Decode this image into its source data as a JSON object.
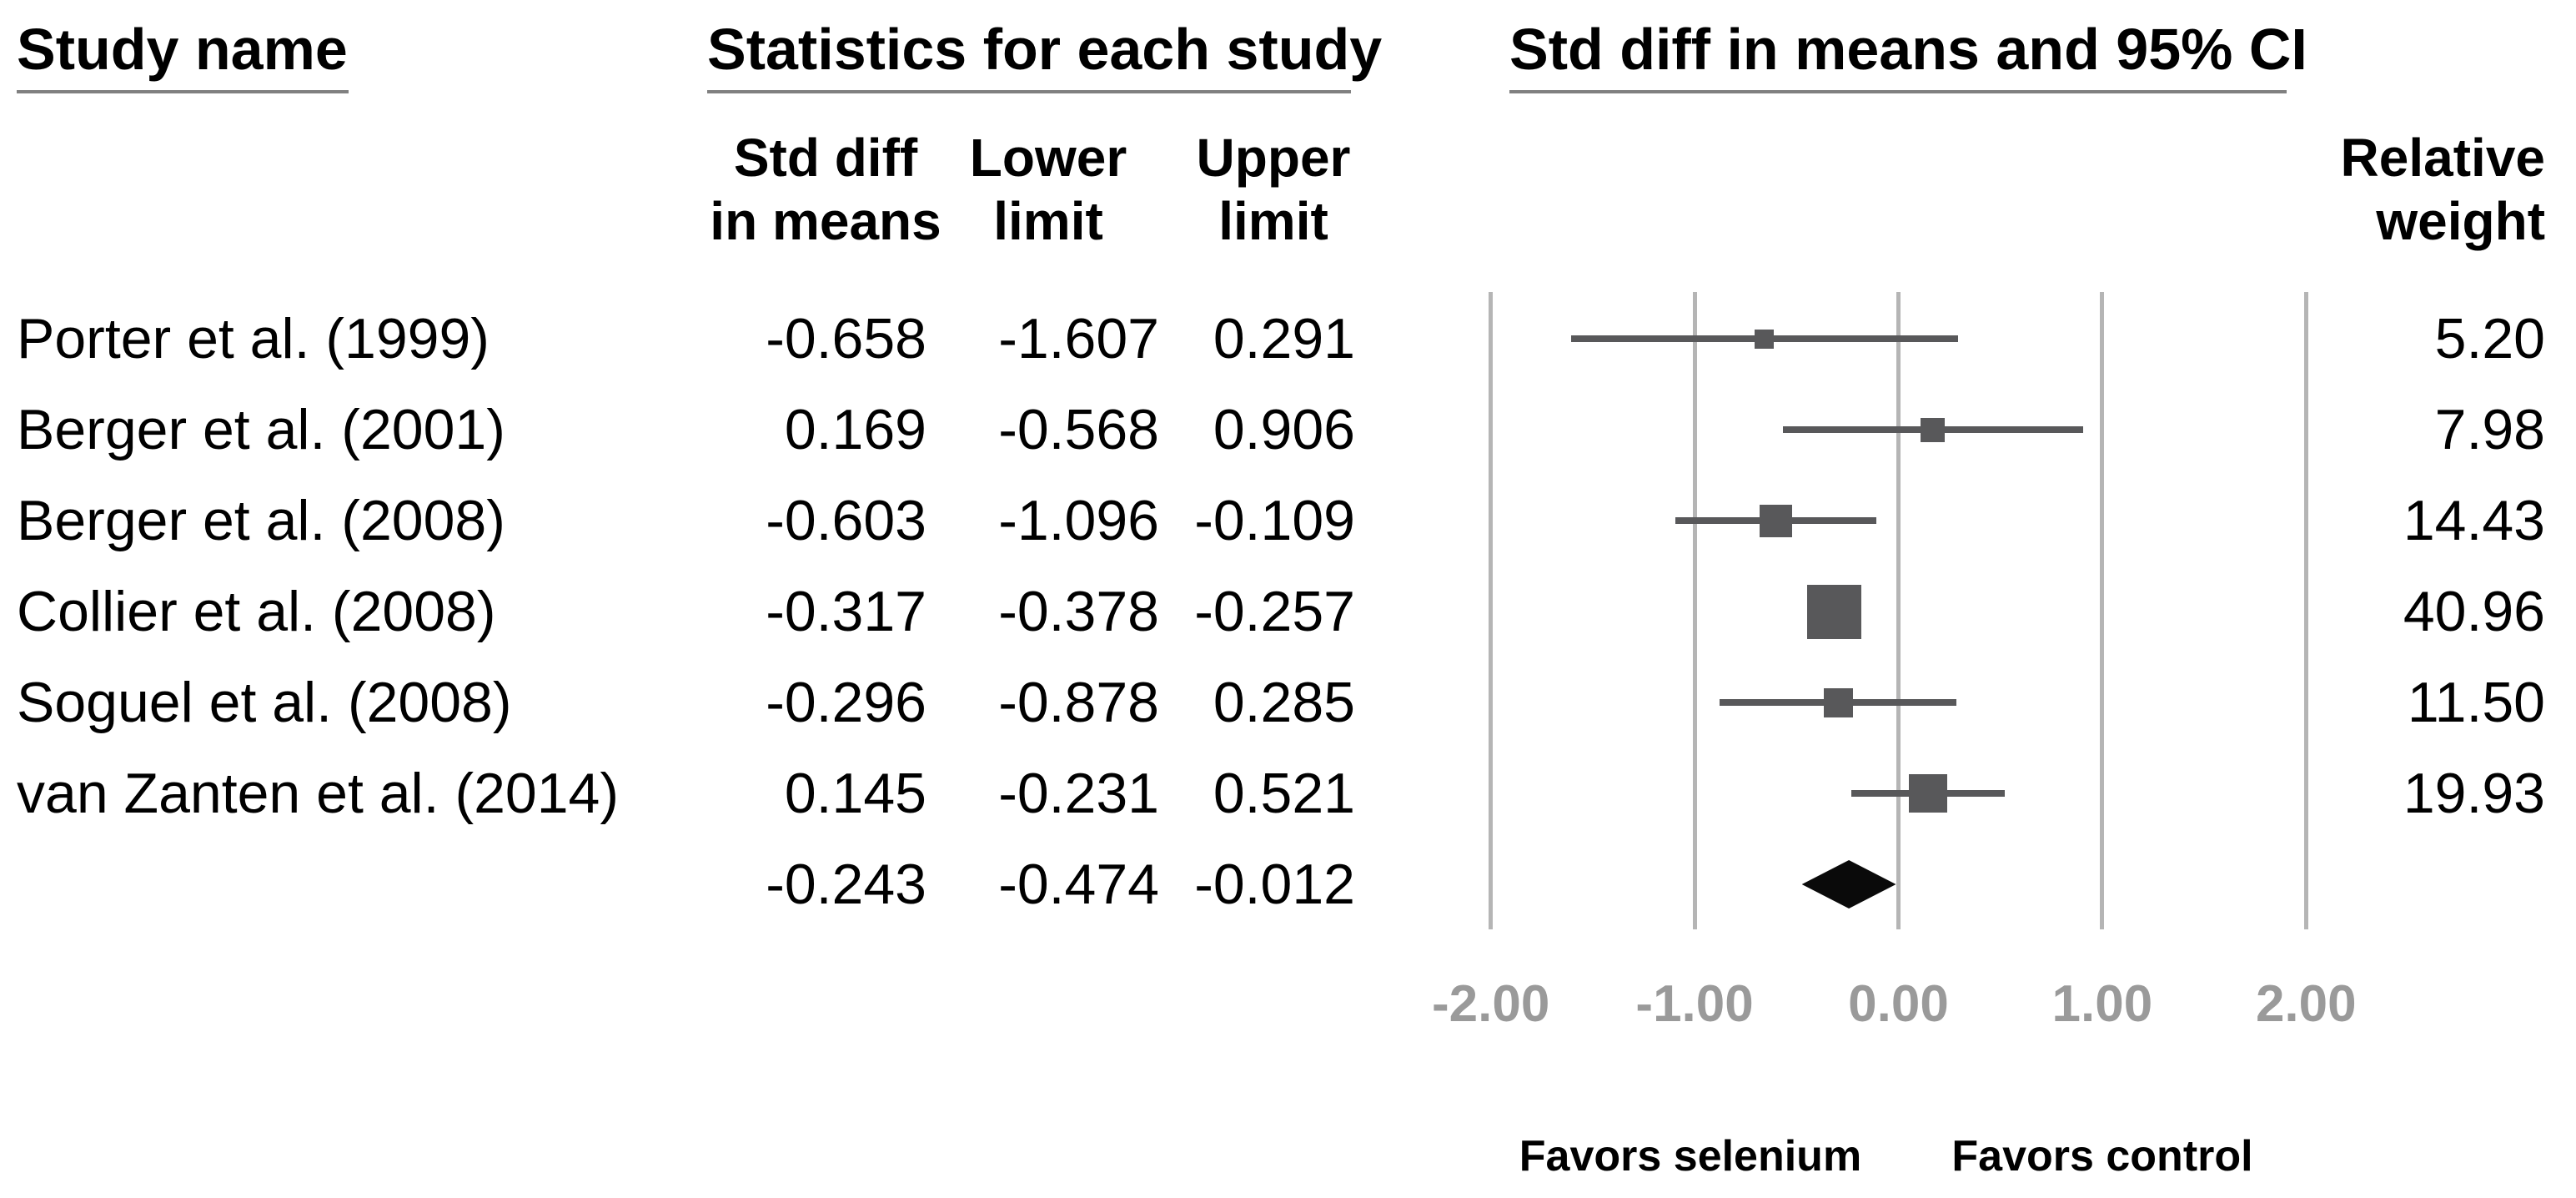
{
  "figure": {
    "group_headers": {
      "study_name": "Study name",
      "stats": "Statistics for each study",
      "plot": "Std diff in means and 95% CI"
    },
    "column_headers": {
      "std_diff": "Std diff\nin means",
      "lower": "Lower\nlimit",
      "upper": "Upper\nlimit",
      "weight": "Relative\nweight"
    }
  },
  "chart_data": {
    "type": "scatter",
    "subtype": "forest_plot_meta_analysis",
    "title": "Std diff in means and 95% CI",
    "effect_measure": "Std diff in means",
    "columns": [
      "Std diff in means",
      "Lower limit",
      "Upper limit",
      "Relative weight"
    ],
    "studies": [
      {
        "name": "Porter et al. (1999)",
        "std_diff": "-0.658",
        "lower": "-1.607",
        "upper": "0.291",
        "weight": "5.20"
      },
      {
        "name": "Berger et al. (2001)",
        "std_diff": "0.169",
        "lower": "-0.568",
        "upper": "0.906",
        "weight": "7.98"
      },
      {
        "name": "Berger et al. (2008)",
        "std_diff": "-0.603",
        "lower": "-1.096",
        "upper": "-0.109",
        "weight": "14.43"
      },
      {
        "name": "Collier et al. (2008)",
        "std_diff": "-0.317",
        "lower": "-0.378",
        "upper": "-0.257",
        "weight": "40.96"
      },
      {
        "name": "Soguel et al. (2008)",
        "std_diff": "-0.296",
        "lower": "-0.878",
        "upper": "0.285",
        "weight": "11.50"
      },
      {
        "name": "van Zanten et al. (2014)",
        "std_diff": "0.145",
        "lower": "-0.231",
        "upper": "0.521",
        "weight": "19.93"
      }
    ],
    "overall": {
      "std_diff": "-0.243",
      "lower": "-0.474",
      "upper": "-0.012"
    },
    "x_axis": {
      "tick_values": [
        -2,
        -1,
        0,
        1,
        2
      ],
      "tick_labels": [
        "-2.00",
        "-1.00",
        "0.00",
        "1.00",
        "2.00"
      ],
      "gridlines": true
    },
    "footer_labels": {
      "left": "Favors selenium",
      "right": "Favors control"
    },
    "marker_notes": {
      "study_marker": "gray square, area proportional to relative weight",
      "overall_marker": "black diamond spanning 95% CI"
    },
    "colors": {
      "marker": "#58585a",
      "overall_diamond": "#0a0a0a",
      "gridline": "#b5b5b5",
      "tick_text": "#9a9a9a",
      "header_underline": "#808080",
      "text": "#000000",
      "background": "#ffffff"
    }
  }
}
